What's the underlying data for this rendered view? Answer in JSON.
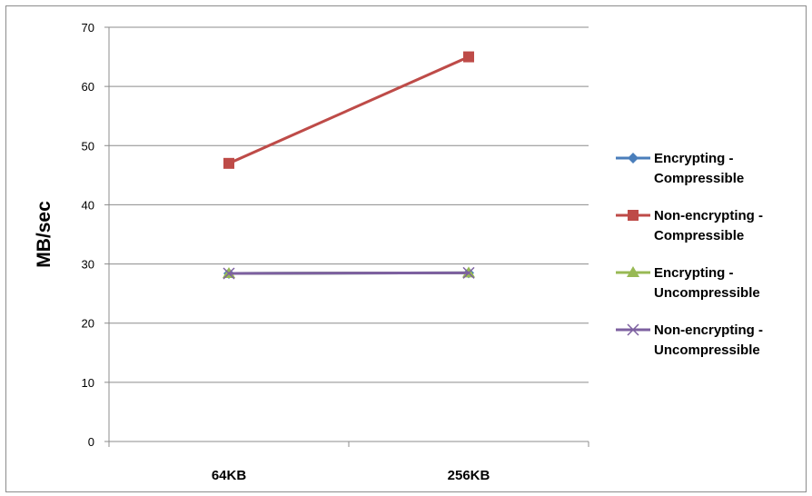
{
  "chart_data": {
    "type": "line",
    "title": "",
    "xlabel": "",
    "ylabel": "MB/sec",
    "categories": [
      "64KB",
      "256KB"
    ],
    "ylim": [
      0,
      70
    ],
    "yticks": [
      0,
      10,
      20,
      30,
      40,
      50,
      60,
      70
    ],
    "grid": true,
    "legend_position": "right",
    "series": [
      {
        "name": [
          "Encrypting -",
          "Compressible"
        ],
        "values": [
          28.4,
          28.5
        ],
        "color": "#4a7ebb",
        "marker": "diamond"
      },
      {
        "name": [
          "Non-encrypting -",
          "Compressible"
        ],
        "values": [
          47,
          65
        ],
        "color": "#be4b48",
        "marker": "square"
      },
      {
        "name": [
          "Encrypting -",
          "Uncompressible"
        ],
        "values": [
          28.4,
          28.5
        ],
        "color": "#98b954",
        "marker": "triangle"
      },
      {
        "name": [
          "Non-encrypting -",
          "Uncompressible"
        ],
        "values": [
          28.4,
          28.5
        ],
        "color": "#7d60a0",
        "marker": "x"
      }
    ]
  }
}
